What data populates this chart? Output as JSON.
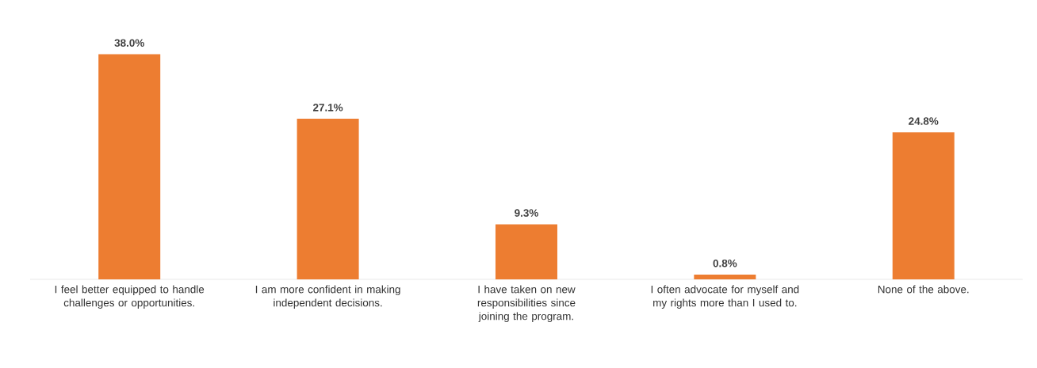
{
  "chart_data": {
    "type": "bar",
    "categories": [
      "I feel better equipped to handle challenges or opportunities.",
      "I am more confident in making independent decisions.",
      "I have taken on new responsibilities since joining the program.",
      "I often advocate for myself and my rights more than I used to.",
      "None of the above."
    ],
    "values": [
      38.0,
      27.1,
      9.3,
      0.8,
      24.8
    ],
    "value_labels": [
      "38.0%",
      "27.1%",
      "9.3%",
      "0.8%",
      "24.8%"
    ],
    "color": "#ed7d31"
  }
}
